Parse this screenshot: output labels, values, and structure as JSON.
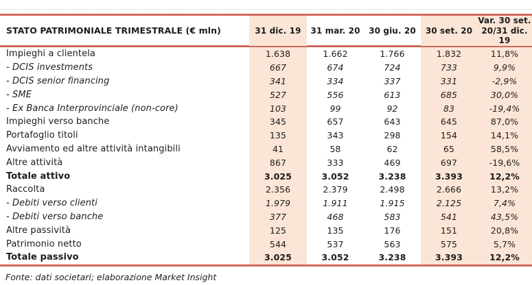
{
  "colors": {
    "accent_line": "#d1695c",
    "band_fill": "#fbe5d6",
    "text": "#1c1c1c"
  },
  "table": {
    "title": "STATO PATRIMONIALE TRIMESTRALE (€ mln)",
    "columns": [
      "31 dic. 19",
      "31 mar. 20",
      "30 giu. 20",
      "30 set. 20",
      "Var. 30 set.\n20/31 dic.\n19"
    ],
    "rows": [
      {
        "label": "Impieghi a clientela",
        "style": "normal",
        "values": [
          "1.638",
          "1.662",
          "1.766",
          "1.832",
          "11,8%"
        ]
      },
      {
        "label": "- DCIS investments",
        "style": "sub",
        "values": [
          "667",
          "674",
          "724",
          "733",
          "9,9%"
        ]
      },
      {
        "label": "- DCIS senior financing",
        "style": "sub",
        "values": [
          "341",
          "334",
          "337",
          "331",
          "-2,9%"
        ]
      },
      {
        "label": "- SME",
        "style": "sub",
        "values": [
          "527",
          "556",
          "613",
          "685",
          "30,0%"
        ]
      },
      {
        "label": "- Ex Banca Interprovinciale (non-core)",
        "style": "sub",
        "values": [
          "103",
          "99",
          "92",
          "83",
          "-19,4%"
        ]
      },
      {
        "label": "Impieghi verso banche",
        "style": "normal",
        "values": [
          "345",
          "657",
          "643",
          "645",
          "87,0%"
        ]
      },
      {
        "label": "Portafoglio titoli",
        "style": "normal",
        "values": [
          "135",
          "343",
          "298",
          "154",
          "14,1%"
        ]
      },
      {
        "label": "Avviamento ed altre attività intangibili",
        "style": "normal",
        "values": [
          "41",
          "58",
          "62",
          "65",
          "58,5%"
        ]
      },
      {
        "label": "Altre attività",
        "style": "normal",
        "values": [
          "867",
          "333",
          "469",
          "697",
          "-19,6%"
        ]
      },
      {
        "label": "Totale attivo",
        "style": "total",
        "values": [
          "3.025",
          "3.052",
          "3.238",
          "3.393",
          "12,2%"
        ]
      },
      {
        "label": "Raccolta",
        "style": "normal",
        "values": [
          "2.356",
          "2.379",
          "2.498",
          "2.666",
          "13,2%"
        ]
      },
      {
        "label": "- Debiti verso clienti",
        "style": "sub",
        "values": [
          "1.979",
          "1.911",
          "1.915",
          "2.125",
          "7,4%"
        ]
      },
      {
        "label": "- Debiti verso banche",
        "style": "sub",
        "values": [
          "377",
          "468",
          "583",
          "541",
          "43,5%"
        ]
      },
      {
        "label": "Altre passività",
        "style": "normal",
        "values": [
          "125",
          "135",
          "176",
          "151",
          "20,8%"
        ]
      },
      {
        "label": "Patrimonio netto",
        "style": "normal",
        "values": [
          "544",
          "537",
          "563",
          "575",
          "5,7%"
        ]
      },
      {
        "label": "Totale passivo",
        "style": "total",
        "values": [
          "3.025",
          "3.052",
          "3.238",
          "3.393",
          "12,2%"
        ]
      }
    ]
  },
  "footer": {
    "source": "Fonte: dati societari; elaborazione Market Insight"
  }
}
